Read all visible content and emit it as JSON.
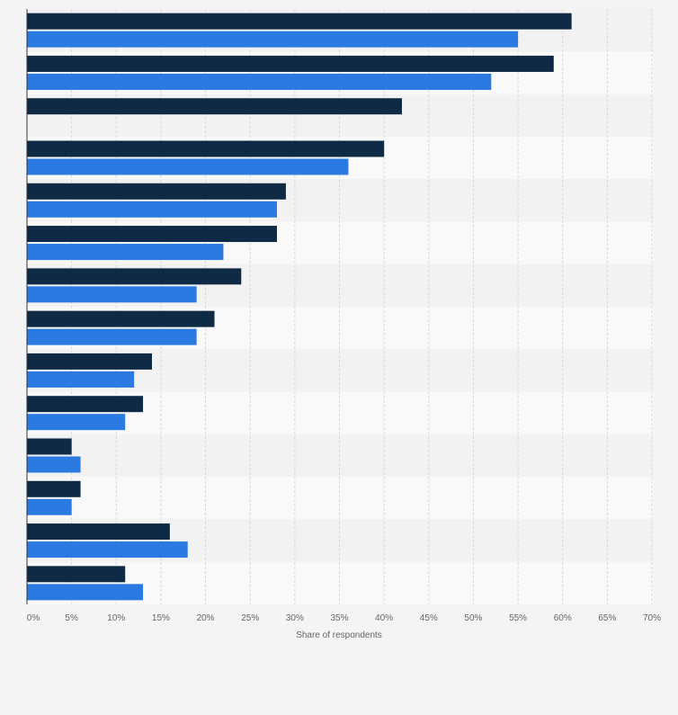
{
  "chart_data": {
    "type": "bar",
    "orientation": "horizontal",
    "categories": [
      "",
      "",
      "",
      "",
      "",
      "",
      "",
      "",
      "",
      "",
      "",
      "",
      "",
      ""
    ],
    "series": [
      {
        "name": "",
        "color": "#0f2a44",
        "values": [
          61,
          59,
          42,
          40,
          29,
          28,
          24,
          21,
          14,
          13,
          5,
          6,
          16,
          11
        ]
      },
      {
        "name": "",
        "color": "#2a7ae2",
        "values": [
          55,
          52,
          null,
          36,
          28,
          22,
          19,
          19,
          12,
          11,
          6,
          5,
          18,
          13
        ]
      }
    ],
    "xlim": [
      0,
      70
    ],
    "xticks": [
      0,
      5,
      10,
      15,
      20,
      25,
      30,
      35,
      40,
      45,
      50,
      55,
      60,
      65,
      70
    ],
    "xtick_labels": [
      "0%",
      "5%",
      "10%",
      "15%",
      "20%",
      "25%",
      "30%",
      "35%",
      "40%",
      "45%",
      "50%",
      "55%",
      "60%",
      "65%",
      "70%"
    ],
    "xlabel": "Share of respondents",
    "ylabel": "",
    "title": "",
    "grid": true,
    "legend": "none",
    "colors": {
      "background": "#f4f4f4",
      "band_dark": "#f2f2f2",
      "band_light": "#f9f9f9",
      "grid": "#d8d8d8",
      "axis": "#333333"
    }
  }
}
